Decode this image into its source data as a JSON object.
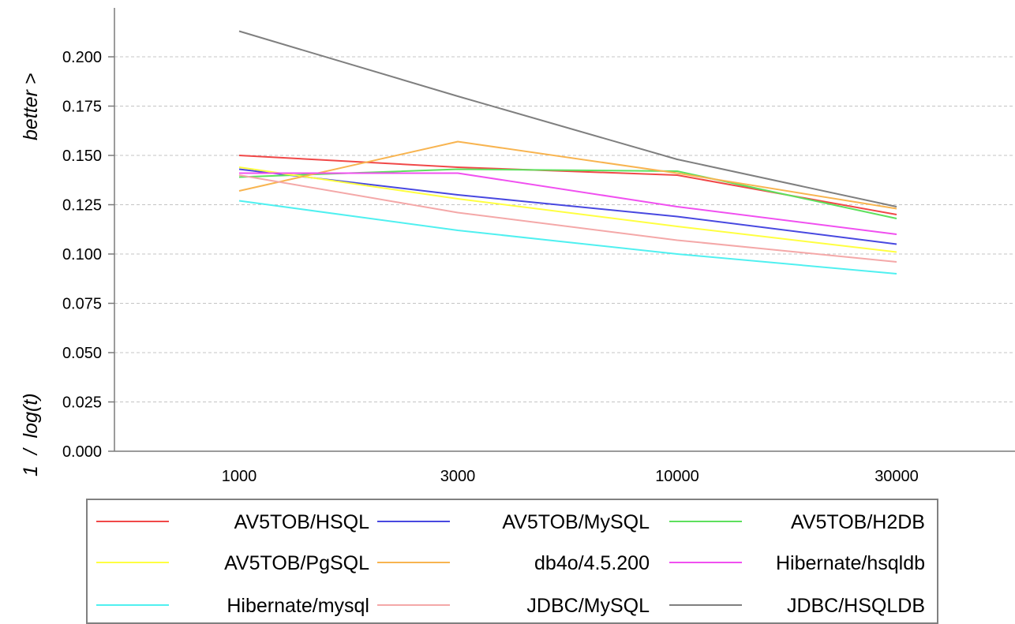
{
  "chart_data": {
    "type": "line",
    "title": "",
    "xlabel": "",
    "ylabel": "1  /  log(t)",
    "ylabel_note": "better >",
    "categories": [
      "1000",
      "3000",
      "10000",
      "30000"
    ],
    "ylim": [
      0.0,
      0.2
    ],
    "y_ticks": [
      "0.000",
      "0.025",
      "0.050",
      "0.075",
      "0.100",
      "0.125",
      "0.150",
      "0.175",
      "0.200"
    ],
    "grid": true,
    "legend_position": "bottom",
    "series": [
      {
        "name": "AV5TOB/HSQL",
        "color": "#f04848",
        "values": [
          0.15,
          0.144,
          0.14,
          0.12
        ]
      },
      {
        "name": "AV5TOB/MySQL",
        "color": "#4848e0",
        "values": [
          0.143,
          0.13,
          0.119,
          0.105
        ]
      },
      {
        "name": "AV5TOB/H2DB",
        "color": "#5de05d",
        "values": [
          0.139,
          0.143,
          0.142,
          0.118
        ]
      },
      {
        "name": "AV5TOB/PgSQL",
        "color": "#ffff40",
        "values": [
          0.144,
          0.128,
          0.114,
          0.101
        ]
      },
      {
        "name": "db4o/4.5.200",
        "color": "#f8b450",
        "values": [
          0.132,
          0.157,
          0.141,
          0.123
        ]
      },
      {
        "name": "Hibernate/hsqldb",
        "color": "#f050f0",
        "values": [
          0.141,
          0.141,
          0.124,
          0.11
        ]
      },
      {
        "name": "Hibernate/mysql",
        "color": "#50f0f0",
        "values": [
          0.127,
          0.112,
          0.1,
          0.09
        ]
      },
      {
        "name": "JDBC/MySQL",
        "color": "#f4a8a8",
        "values": [
          0.14,
          0.121,
          0.107,
          0.096
        ]
      },
      {
        "name": "JDBC/HSQLDB",
        "color": "#7f7f7f",
        "values": [
          0.213,
          0.18,
          0.148,
          0.124
        ]
      }
    ]
  }
}
